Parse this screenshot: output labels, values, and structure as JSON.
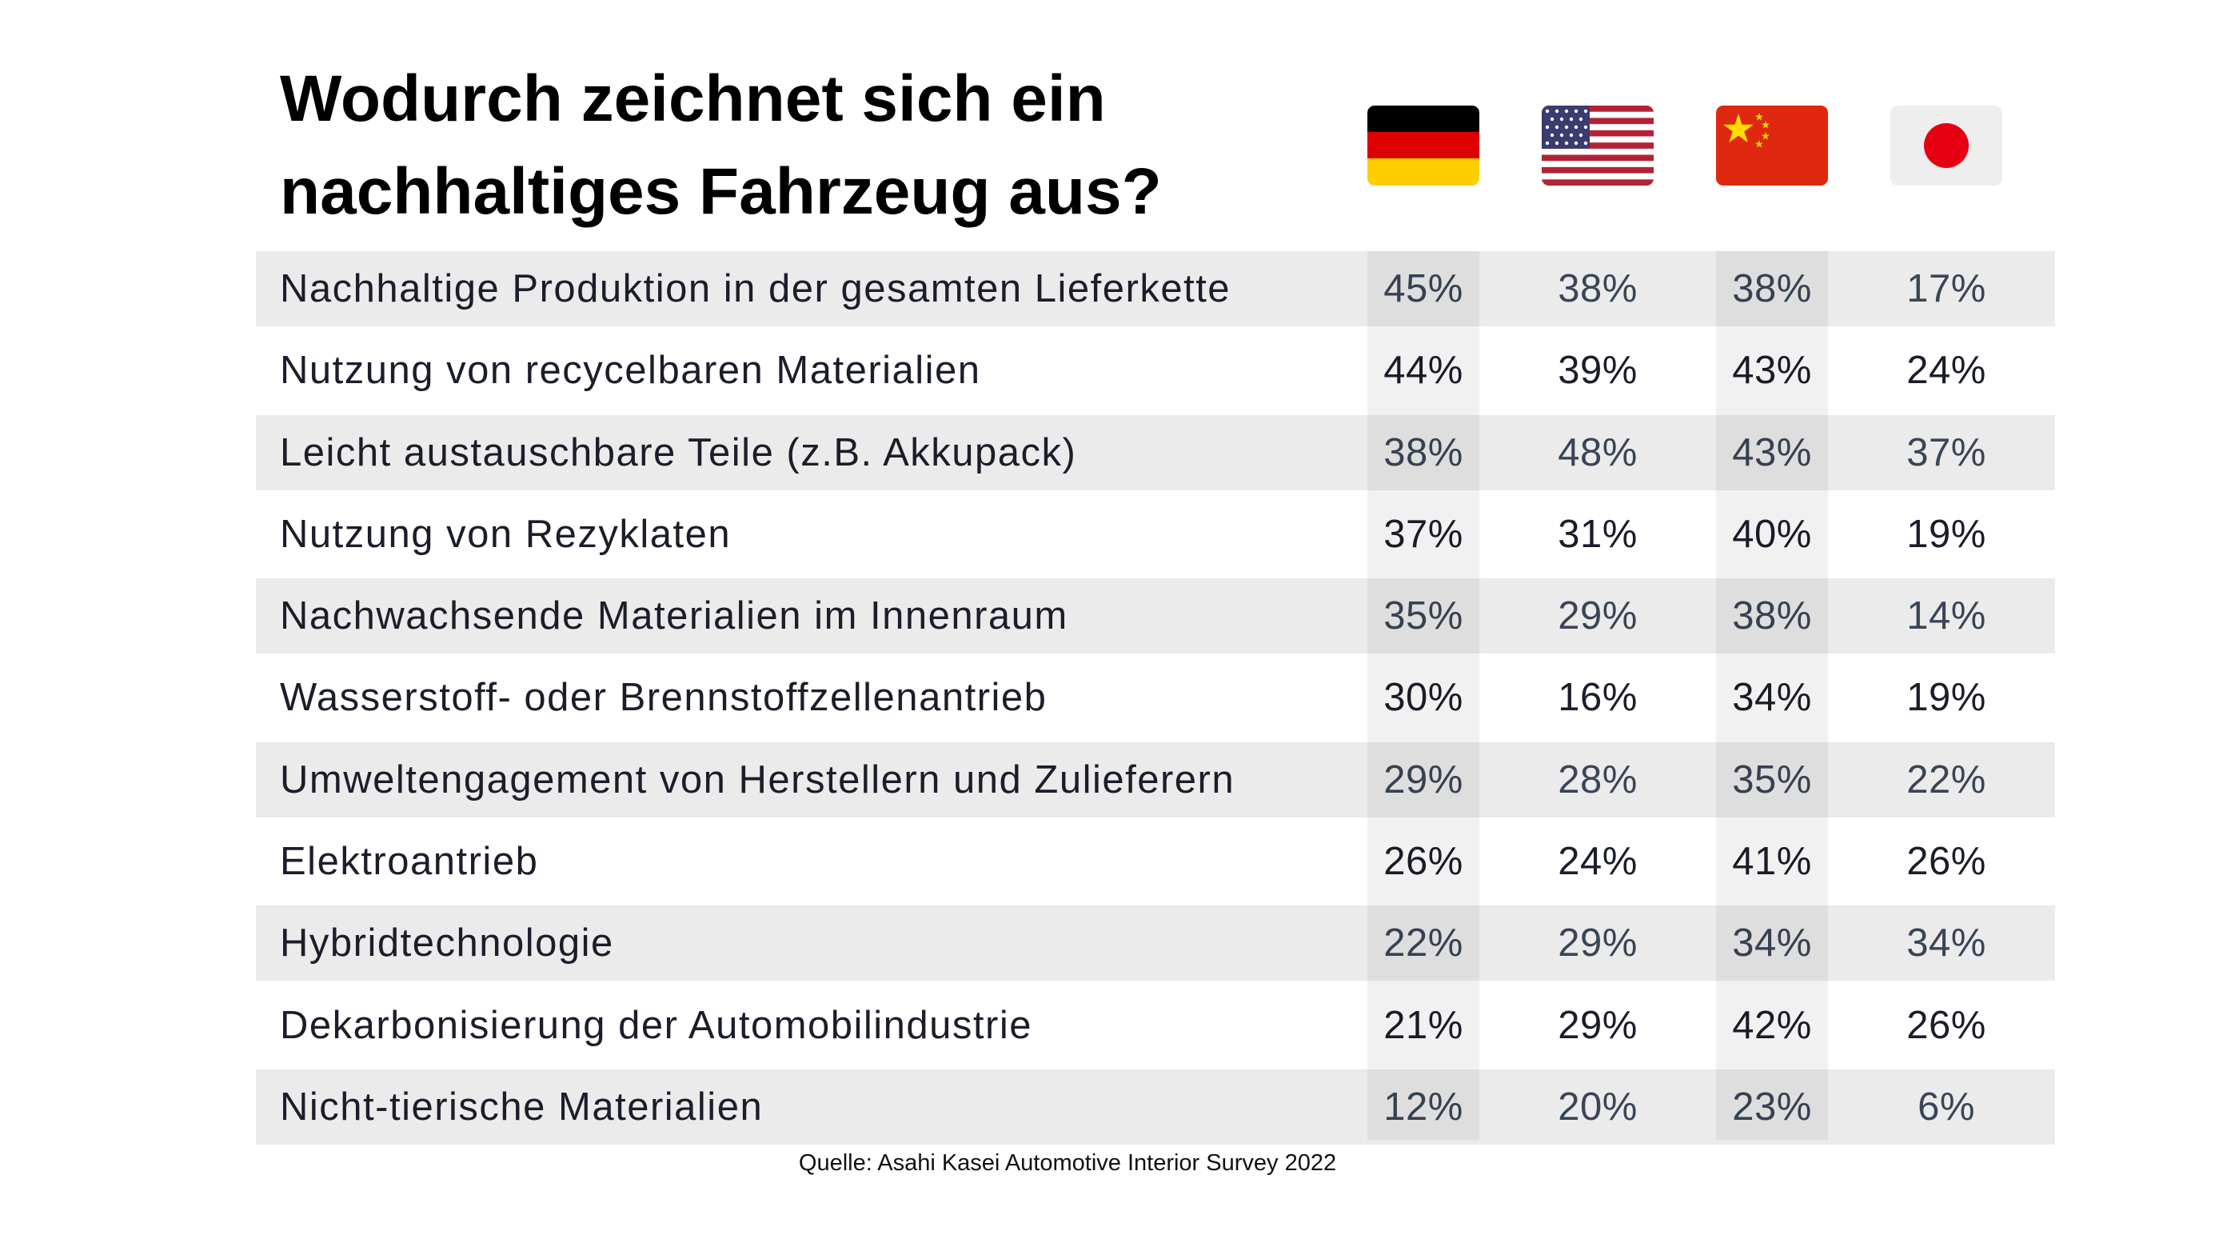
{
  "chart_data": {
    "type": "table",
    "title_lines": [
      "Wodurch zeichnet sich ein",
      "nachhaltiges Fahrzeug aus?"
    ],
    "columns": [
      "Deutschland",
      "USA",
      "China",
      "Japan"
    ],
    "rows": [
      {
        "label": "Nachhaltige Produktion in der gesamten Lieferkette",
        "values": [
          "45%",
          "38%",
          "38%",
          "17%"
        ]
      },
      {
        "label": "Nutzung von recycelbaren Materialien",
        "values": [
          "44%",
          "39%",
          "43%",
          "24%"
        ]
      },
      {
        "label": "Leicht austauschbare Teile (z.B. Akkupack)",
        "values": [
          "38%",
          "48%",
          "43%",
          "37%"
        ]
      },
      {
        "label": "Nutzung von Rezyklaten",
        "values": [
          "37%",
          "31%",
          "40%",
          "19%"
        ]
      },
      {
        "label": "Nachwachsende Materialien im Innenraum",
        "values": [
          "35%",
          "29%",
          "38%",
          "14%"
        ]
      },
      {
        "label": "Wasserstoff- oder Brennstoffzellenantrieb",
        "values": [
          "30%",
          "16%",
          "34%",
          "19%"
        ]
      },
      {
        "label": "Umweltengagement von Herstellern und Zulieferern",
        "values": [
          "29%",
          "28%",
          "35%",
          "22%"
        ]
      },
      {
        "label": "Elektroantrieb",
        "values": [
          "26%",
          "24%",
          "41%",
          "26%"
        ]
      },
      {
        "label": "Hybridtechnologie",
        "values": [
          "22%",
          "29%",
          "34%",
          "34%"
        ]
      },
      {
        "label": "Dekarbonisierung der Automobilindustrie",
        "values": [
          "21%",
          "29%",
          "42%",
          "26%"
        ]
      },
      {
        "label": "Nicht-tierische Materialien",
        "values": [
          "12%",
          "20%",
          "23%",
          "6%"
        ]
      }
    ],
    "source": "Quelle: Asahi Kasei Automotive Interior Survey 2022"
  },
  "flags": [
    {
      "icon": "germany-flag-icon",
      "colors": [
        "#000000",
        "#dd0000",
        "#ffce00"
      ]
    },
    {
      "icon": "usa-flag-icon",
      "colors": [
        "#b22234",
        "#ffffff",
        "#3c3b6e"
      ]
    },
    {
      "icon": "china-flag-icon",
      "colors": [
        "#de2910",
        "#ffde00"
      ]
    },
    {
      "icon": "japan-flag-icon",
      "colors": [
        "#eeeeee",
        "#e60012"
      ]
    }
  ]
}
